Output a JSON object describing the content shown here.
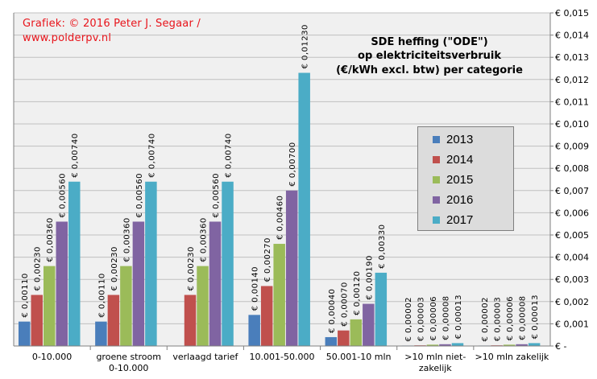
{
  "credit": {
    "line1": "Grafiek:  © 2016 Peter J. Segaar /",
    "line2": "www.polderpv.nl"
  },
  "chart_data": {
    "type": "bar",
    "title_lines": [
      "SDE heffing  (\"ODE\")",
      "op elektriciteitsverbruik",
      "(€/kWh excl. btw) per categorie"
    ],
    "categories": [
      [
        "0-10.000"
      ],
      [
        "groene stroom",
        "0-10.000"
      ],
      [
        "verlaagd tarief"
      ],
      [
        "10.001-50.000"
      ],
      [
        "50.001-10 mln"
      ],
      [
        ">10 mln niet-",
        "zakelijk"
      ],
      [
        ">10 mln zakelijk"
      ]
    ],
    "series": [
      {
        "name": "2013",
        "color": "#4a7ebb",
        "values": [
          0.0011,
          0.0011,
          null,
          0.0014,
          0.0004,
          2e-05,
          2e-05
        ],
        "labels": [
          "€ 0,00110",
          "€ 0,00110",
          "",
          "€ 0,00140",
          "€ 0,00040",
          "€ 0,00002",
          "€ 0,00002"
        ]
      },
      {
        "name": "2014",
        "color": "#c0504d",
        "values": [
          0.0023,
          0.0023,
          0.0023,
          0.0027,
          0.0007,
          3e-05,
          3e-05
        ],
        "labels": [
          "€ 0,00230",
          "€ 0,00230",
          "€ 0,00230",
          "€ 0,00270",
          "€ 0,00070",
          "€ 0,00003",
          "€ 0,00003"
        ]
      },
      {
        "name": "2015",
        "color": "#9bbb59",
        "values": [
          0.0036,
          0.0036,
          0.0036,
          0.0046,
          0.0012,
          6e-05,
          6e-05
        ],
        "labels": [
          "€ 0,00360",
          "€ 0,00360",
          "€ 0,00360",
          "€ 0,00460",
          "€ 0,00120",
          "€ 0,00006",
          "€ 0,00006"
        ]
      },
      {
        "name": "2016",
        "color": "#8064a2",
        "values": [
          0.0056,
          0.0056,
          0.0056,
          0.007,
          0.0019,
          8e-05,
          8e-05
        ],
        "labels": [
          "€ 0,00560",
          "€ 0,00560",
          "€ 0,00560",
          "€ 0,00700",
          "€ 0,00190",
          "€ 0,00008",
          "€ 0,00008"
        ]
      },
      {
        "name": "2017",
        "color": "#4bacc6",
        "values": [
          0.0074,
          0.0074,
          0.0074,
          0.0123,
          0.0033,
          0.00013,
          0.00013
        ],
        "labels": [
          "€ 0,00740",
          "€ 0,00740",
          "€ 0,00740",
          "€ 0,01230",
          "€ 0,00330",
          "€ 0,00013",
          "€ 0,00013"
        ]
      }
    ],
    "ylim": [
      0,
      0.015
    ],
    "yticks": [
      0,
      0.001,
      0.002,
      0.003,
      0.004,
      0.005,
      0.006,
      0.007,
      0.008,
      0.009,
      0.01,
      0.011,
      0.012,
      0.013,
      0.014,
      0.015
    ],
    "ytick_labels": [
      "€ -",
      "€ 0,001",
      "€ 0,002",
      "€ 0,003",
      "€ 0,004",
      "€ 0,005",
      "€ 0,006",
      "€ 0,007",
      "€ 0,008",
      "€ 0,009",
      "€ 0,010",
      "€ 0,011",
      "€ 0,012",
      "€ 0,013",
      "€ 0,014",
      "€ 0,015"
    ],
    "y_axis_side": "right",
    "grid": true,
    "legend_position": "right-center",
    "plot_background": "#f0f0f0",
    "grid_color": "#bfbfbf"
  }
}
